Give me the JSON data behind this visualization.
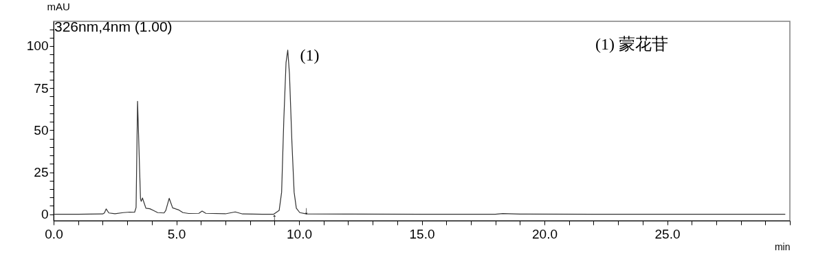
{
  "chart_data": {
    "type": "line",
    "title": "326nm,4nm (1.00)",
    "xlabel": "min",
    "ylabel": "mAU",
    "x": [
      0,
      1.0,
      2.0,
      2.07,
      2.14,
      2.25,
      2.5,
      2.84,
      3.1,
      3.3,
      3.36,
      3.42,
      3.54,
      3.57,
      3.62,
      3.76,
      3.92,
      4.06,
      4.24,
      4.5,
      4.57,
      4.71,
      4.85,
      5.08,
      5.27,
      5.5,
      5.92,
      6.05,
      6.2,
      7.0,
      7.4,
      7.7,
      8.5,
      8.96,
      9.19,
      9.29,
      9.38,
      9.47,
      9.54,
      9.61,
      9.71,
      9.8,
      9.89,
      10.03,
      10.3,
      12.0,
      15.0,
      18.0,
      18.3,
      19.0,
      22.0,
      25.0,
      29.8
    ],
    "series": [
      {
        "color": "#303030",
        "values": [
          0,
          0,
          0.2,
          0.8,
          3.2,
          0.8,
          0.3,
          1.0,
          1.3,
          1.2,
          4.0,
          67.2,
          9.1,
          7.7,
          9.7,
          3.6,
          3.3,
          2.3,
          1.0,
          0.8,
          2.3,
          9.5,
          3.8,
          2.7,
          1.0,
          0.5,
          0.6,
          1.9,
          0.6,
          0.3,
          1.4,
          0.2,
          0,
          0,
          2.3,
          13.1,
          56.4,
          90.1,
          97.6,
          83.4,
          42.8,
          13.1,
          3.6,
          1.0,
          0.2,
          0.1,
          0,
          0,
          0.4,
          0.1,
          0,
          0,
          0
        ]
      }
    ],
    "xlim": [
      0,
      30
    ],
    "xticks": [
      {
        "value": 0,
        "label": "0.0"
      },
      {
        "value": 1,
        "label": null
      },
      {
        "value": 2,
        "label": null
      },
      {
        "value": 3,
        "label": null
      },
      {
        "value": 4,
        "label": null
      },
      {
        "value": 5,
        "label": "5.0"
      },
      {
        "value": 6,
        "label": null
      },
      {
        "value": 7,
        "label": null
      },
      {
        "value": 8,
        "label": null
      },
      {
        "value": 9,
        "label": null
      },
      {
        "value": 10,
        "label": "10.0"
      },
      {
        "value": 11,
        "label": null
      },
      {
        "value": 12,
        "label": null
      },
      {
        "value": 13,
        "label": null
      },
      {
        "value": 14,
        "label": null
      },
      {
        "value": 15,
        "label": "15.0"
      },
      {
        "value": 16,
        "label": null
      },
      {
        "value": 17,
        "label": null
      },
      {
        "value": 18,
        "label": null
      },
      {
        "value": 19,
        "label": null
      },
      {
        "value": 20,
        "label": "20.0"
      },
      {
        "value": 21,
        "label": null
      },
      {
        "value": 22,
        "label": null
      },
      {
        "value": 23,
        "label": null
      },
      {
        "value": 24,
        "label": null
      },
      {
        "value": 25,
        "label": "25.0"
      },
      {
        "value": 26,
        "label": null
      },
      {
        "value": 27,
        "label": null
      },
      {
        "value": 28,
        "label": null
      },
      {
        "value": 29,
        "label": null
      },
      {
        "value": 30,
        "label": null
      }
    ],
    "ylim": [
      -3.8,
      114.7
    ],
    "yticks": [
      0,
      {
        "value": 5,
        "label": null
      },
      {
        "value": 10,
        "label": null
      },
      {
        "value": 15,
        "label": null
      },
      {
        "value": 20,
        "label": null
      },
      25,
      {
        "value": 30,
        "label": null
      },
      {
        "value": 35,
        "label": null
      },
      {
        "value": 40,
        "label": null
      },
      {
        "value": 45,
        "label": null
      },
      50,
      {
        "value": 55,
        "label": null
      },
      {
        "value": 60,
        "label": null
      },
      {
        "value": 65,
        "label": null
      },
      {
        "value": 70,
        "label": null
      },
      75,
      {
        "value": 80,
        "label": null
      },
      {
        "value": 85,
        "label": null
      },
      {
        "value": 90,
        "label": null
      },
      {
        "value": 95,
        "label": null
      },
      100,
      {
        "value": 105,
        "label": null
      },
      {
        "value": 110,
        "label": null
      }
    ],
    "annotations": [
      {
        "text": "(1)",
        "x": 9.54,
        "y": 97.6
      },
      {
        "text": "↑",
        "x": 9.0,
        "y": -1.9
      },
      {
        "text": "↓",
        "x": 10.3,
        "y": 2.3
      },
      "(1)  蒙花苷"
    ]
  }
}
